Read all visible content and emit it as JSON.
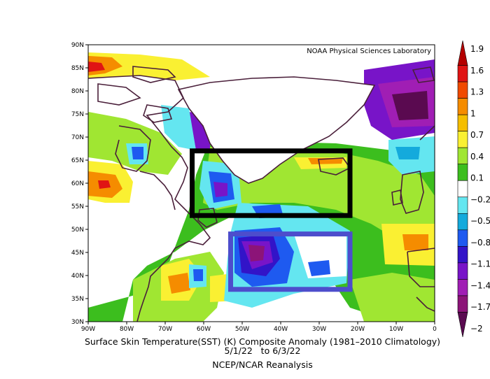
{
  "map": {
    "credit": "NOAA Physical Sciences Laboratory",
    "lat_ticks": [
      "90N",
      "85N",
      "80N",
      "75N",
      "70N",
      "65N",
      "60N",
      "55N",
      "50N",
      "45N",
      "40N",
      "35N",
      "30N"
    ],
    "lon_ticks": [
      "90W",
      "80W",
      "70W",
      "60W",
      "50W",
      "40W",
      "30W",
      "20W",
      "10W",
      "0"
    ],
    "lat_range": [
      30,
      90
    ],
    "lon_range": [
      -90,
      0
    ],
    "boxes": [
      {
        "name": "black-box",
        "color": "#000000",
        "lon": [
          -63,
          -22
        ],
        "lat": [
          53,
          67
        ]
      },
      {
        "name": "blue-box",
        "color": "#4d4dcc",
        "lon": [
          -53,
          -22
        ],
        "lat": [
          37,
          49
        ]
      }
    ]
  },
  "colorbar": {
    "labels": [
      "1.9",
      "1.6",
      "1.3",
      "1",
      "0.7",
      "0.4",
      "0.1",
      "−0.2",
      "−0.5",
      "−0.8",
      "−1.1",
      "−1.4",
      "−1.7",
      "−2"
    ],
    "colors": [
      "#b40000",
      "#e01414",
      "#f04a00",
      "#f58c00",
      "#f5be00",
      "#faf032",
      "#a0e632",
      "#3cbe1e",
      "#ffffff",
      "#64e6f0",
      "#14aadc",
      "#1e5af0",
      "#3214c8",
      "#7814c8",
      "#a01eb4",
      "#8c1478",
      "#5a0a50"
    ]
  },
  "caption": {
    "title": "Surface Skin Temperature(SST) (K) Composite Anomaly (1981–2010 Climatology)",
    "dates": "5/1/22   to 6/3/22",
    "source": "NCEP/NCAR Reanalysis"
  }
}
